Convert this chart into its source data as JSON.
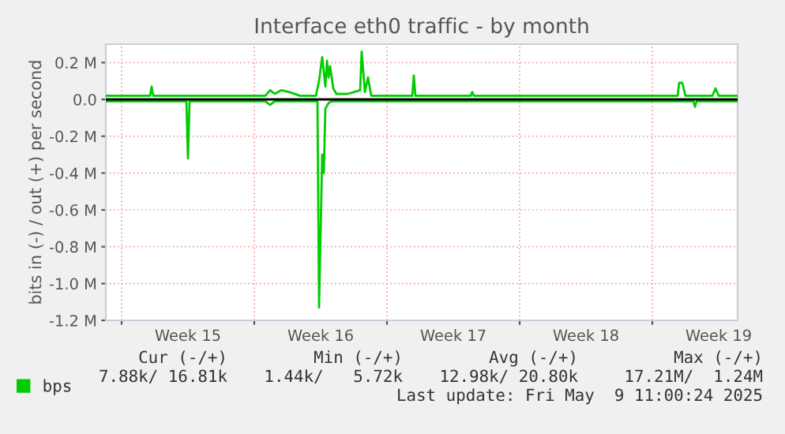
{
  "chart_data": {
    "type": "line",
    "title": "Interface eth0 traffic - by month",
    "ylabel": "bits in (-) / out (+) per second",
    "series": [
      {
        "name": "bps",
        "color": "#00cc00",
        "x": [
          "2025-04-06T04:00",
          "2025-04-08T02:00",
          "2025-04-08T12:00",
          "2025-04-08T14:00",
          "2025-04-08T16:00",
          "2025-04-10T08:00",
          "2025-04-13T02:00",
          "2025-04-14T14:00",
          "2025-04-14T20:00",
          "2025-04-15T02:00",
          "2025-04-15T10:00",
          "2025-04-15T20:00",
          "2025-04-16T10:00",
          "2025-04-17T06:00",
          "2025-04-17T10:00",
          "2025-04-17T14:00",
          "2025-04-17T18:00",
          "2025-04-17T20:00",
          "2025-04-17T22:00",
          "2025-04-18T00:00",
          "2025-04-18T04:00",
          "2025-04-18T08:00",
          "2025-04-18T22:00",
          "2025-04-19T14:00",
          "2025-04-19T16:00",
          "2025-04-19T20:00",
          "2025-04-20T00:00",
          "2025-04-20T04:00",
          "2025-04-22T08:00",
          "2025-04-22T10:00",
          "2025-04-22T12:00",
          "2025-04-25T10:00",
          "2025-04-25T12:00",
          "2025-04-25T14:00",
          "2025-05-06T08:00",
          "2025-05-06T10:00",
          "2025-05-06T14:00",
          "2025-05-06T18:00",
          "2025-05-08T04:00",
          "2025-05-08T08:00",
          "2025-05-08T12:00",
          "2025-05-09T12:00"
        ],
        "values": [
          0.02,
          0.02,
          0.02,
          0.07,
          0.02,
          0.02,
          0.02,
          0.02,
          0.05,
          0.03,
          0.05,
          0.04,
          0.02,
          0.02,
          0.1,
          0.23,
          0.07,
          0.21,
          0.12,
          0.18,
          0.06,
          0.03,
          0.03,
          0.05,
          0.26,
          0.04,
          0.12,
          0.02,
          0.02,
          0.13,
          0.02,
          0.02,
          0.04,
          0.02,
          0.02,
          0.09,
          0.09,
          0.02,
          0.02,
          0.06,
          0.02,
          0.02
        ]
      },
      {
        "color": "#00cc00",
        "x": [
          "2025-04-06T04:00",
          "2025-04-10T10:00",
          "2025-04-10T12:00",
          "2025-04-10T14:00",
          "2025-04-14T14:00",
          "2025-04-14T20:00",
          "2025-04-15T02:00",
          "2025-04-17T08:00",
          "2025-04-17T10:00",
          "2025-04-17T14:00",
          "2025-04-17T16:00",
          "2025-04-17T18:00",
          "2025-04-17T22:00",
          "2025-04-18T02:00",
          "2025-05-07T04:00",
          "2025-05-07T06:00",
          "2025-05-07T08:00",
          "2025-05-09T12:00"
        ],
        "values": [
          -0.01,
          -0.01,
          -0.32,
          -0.01,
          -0.01,
          -0.03,
          -0.01,
          -0.01,
          -1.13,
          -0.3,
          -0.4,
          -0.05,
          -0.02,
          -0.01,
          -0.01,
          -0.04,
          -0.01,
          -0.01
        ]
      }
    ],
    "xlim": [
      "2025-04-06T04:00",
      "2025-05-09T12:00"
    ],
    "xticks": [
      {
        "value": "2025-04-07",
        "label": null
      },
      {
        "value": "2025-04-10T12:00",
        "label": "Week 15"
      },
      {
        "value": "2025-04-14",
        "label": null
      },
      {
        "value": "2025-04-17T12:00",
        "label": "Week 16"
      },
      {
        "value": "2025-04-21",
        "label": null
      },
      {
        "value": "2025-04-24T12:00",
        "label": "Week 17"
      },
      {
        "value": "2025-04-28",
        "label": null
      },
      {
        "value": "2025-05-01T12:00",
        "label": "Week 18"
      },
      {
        "value": "2025-05-05",
        "label": null
      },
      {
        "value": "2025-05-08T12:00",
        "label": "Week 19"
      }
    ],
    "ylim": [
      -1.2,
      0.3
    ],
    "yticks": [
      {
        "value": -1.2,
        "label": "-1.2 M"
      },
      {
        "value": -1.0,
        "label": "-1.0 M"
      },
      {
        "value": -0.8,
        "label": "-0.8 M"
      },
      {
        "value": -0.6,
        "label": "-0.6 M"
      },
      {
        "value": -0.4,
        "label": "-0.4 M"
      },
      {
        "value": -0.2,
        "label": "-0.2 M"
      },
      {
        "value": 0,
        "label": "0.0"
      },
      {
        "value": 0.2,
        "label": "0.2 M"
      }
    ],
    "ref_lines": [
      {
        "axis": "y",
        "value": 0,
        "color": "#000000"
      }
    ],
    "grid": true,
    "legend": "bottom left",
    "marker": "none",
    "line_style": "solid",
    "annotations": [
      "Cur (-/+)",
      "Min (-/+)",
      "Avg (-/+)",
      "Max (-/+)",
      "7.88k/ 16.81k",
      "1.44k/   5.72k",
      "12.98k/ 20.80k",
      "17.21M/  1.24M",
      "Last update: Fri May  9 11:00:24 2025"
    ]
  }
}
